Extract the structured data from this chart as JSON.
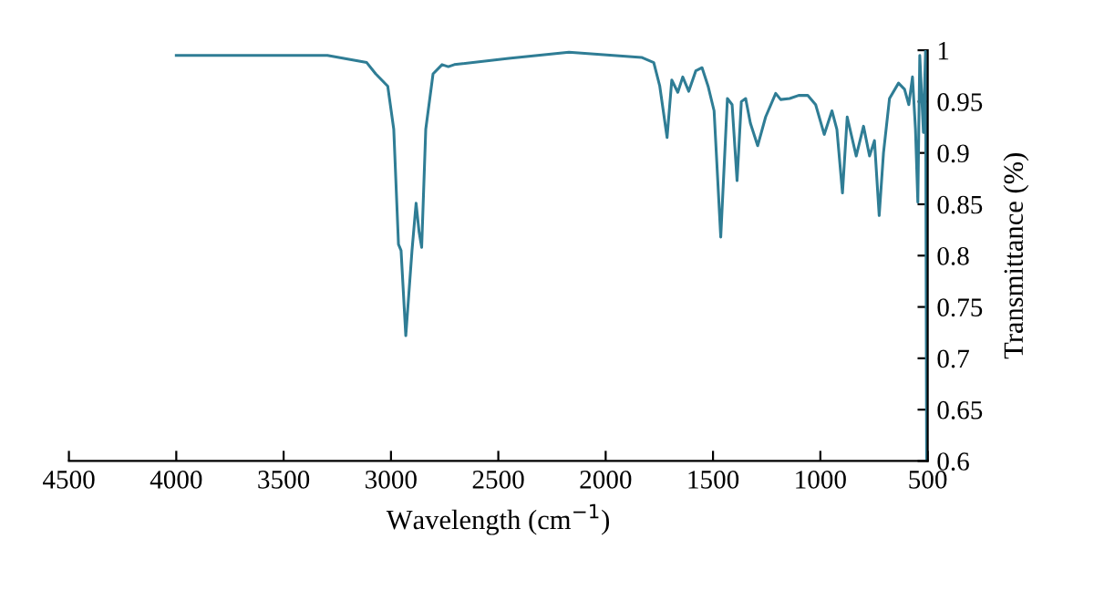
{
  "chart_data": {
    "type": "line",
    "xlabel": "Wavelength (cm$^{−1}$)",
    "ylabel": "Transmittance (%)",
    "xlim": [
      4500,
      500
    ],
    "xticks": [
      4500,
      4000,
      3500,
      3000,
      2500,
      2000,
      1500,
      1000,
      500
    ],
    "ylim": [
      0.6,
      1
    ],
    "yticks": [
      0.6,
      0.65,
      0.7,
      0.75,
      0.8,
      0.85,
      0.9,
      0.95,
      1
    ],
    "marker": "none",
    "line_style": "solid",
    "series": [
      {
        "color": "#2f7d95",
        "x": [
          4000,
          3600,
          3296,
          3113,
          3071,
          3015,
          2987,
          2965,
          2953,
          2931,
          2902,
          2883,
          2869,
          2857,
          2838,
          2804,
          2762,
          2733,
          2705,
          2452,
          2171,
          1833,
          1776,
          1748,
          1714,
          1692,
          1664,
          1641,
          1613,
          1580,
          1551,
          1523,
          1495,
          1464,
          1433,
          1411,
          1388,
          1368,
          1348,
          1326,
          1292,
          1255,
          1208,
          1185,
          1143,
          1101,
          1059,
          1022,
          982,
          946,
          923,
          897,
          875,
          833,
          799,
          771,
          748,
          726,
          706,
          678,
          636,
          608,
          588,
          571,
          557,
          546,
          537,
          520,
          510,
          505,
          500
        ],
        "values": [
          0.995,
          0.995,
          0.995,
          0.988,
          0.977,
          0.965,
          0.923,
          0.811,
          0.805,
          0.722,
          0.805,
          0.851,
          0.823,
          0.808,
          0.923,
          0.977,
          0.986,
          0.984,
          0.986,
          0.992,
          0.998,
          0.993,
          0.988,
          0.965,
          0.915,
          0.971,
          0.959,
          0.974,
          0.96,
          0.98,
          0.983,
          0.965,
          0.941,
          0.818,
          0.953,
          0.947,
          0.873,
          0.95,
          0.953,
          0.929,
          0.907,
          0.935,
          0.958,
          0.952,
          0.953,
          0.956,
          0.956,
          0.947,
          0.918,
          0.941,
          0.923,
          0.861,
          0.935,
          0.897,
          0.926,
          0.897,
          0.912,
          0.839,
          0.9,
          0.953,
          0.968,
          0.962,
          0.947,
          0.974,
          0.923,
          0.852,
          0.995,
          0.92,
          1.0,
          0.6,
          0.6
        ]
      }
    ]
  }
}
